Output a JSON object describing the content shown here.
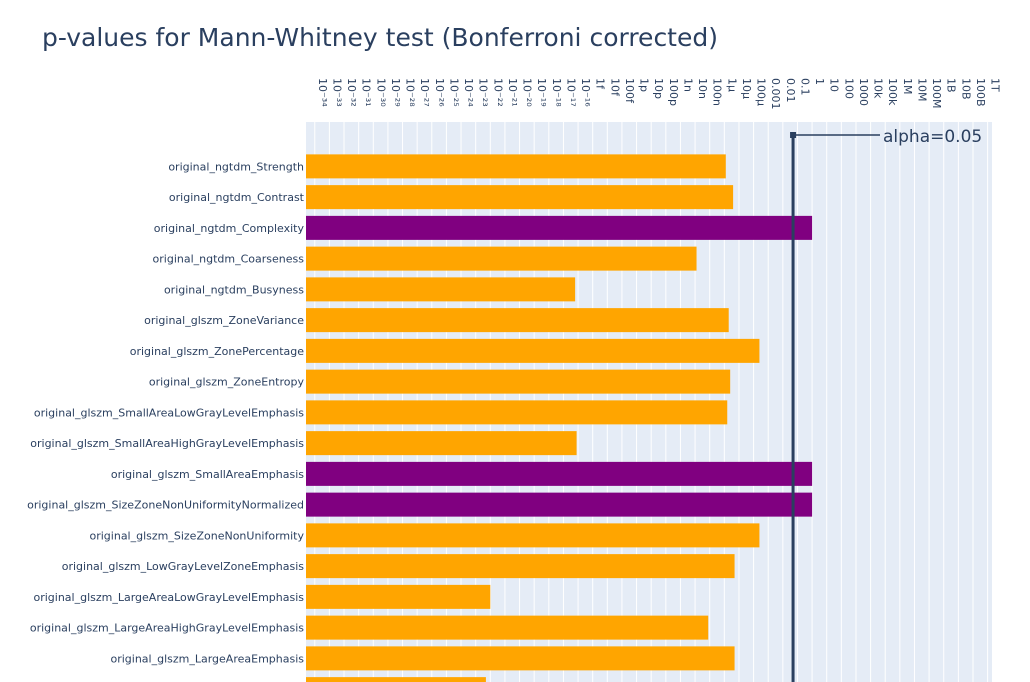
{
  "chart_data": {
    "type": "bar",
    "orientation": "horizontal",
    "title": "p-values for Mann-Whitney test (Bonferroni corrected)",
    "xaxis": {
      "scale": "log",
      "side": "top",
      "range_exponent": [
        -34.6,
        12.3
      ],
      "grid": true
    },
    "x_ticks": [
      {
        "exp": -34,
        "label": "10⁻³⁴"
      },
      {
        "exp": -33,
        "label": "10⁻³³"
      },
      {
        "exp": -32,
        "label": "10⁻³²"
      },
      {
        "exp": -31,
        "label": "10⁻³¹"
      },
      {
        "exp": -30,
        "label": "10⁻³⁰"
      },
      {
        "exp": -29,
        "label": "10⁻²⁹"
      },
      {
        "exp": -28,
        "label": "10⁻²⁸"
      },
      {
        "exp": -27,
        "label": "10⁻²⁷"
      },
      {
        "exp": -26,
        "label": "10⁻²⁶"
      },
      {
        "exp": -25,
        "label": "10⁻²⁵"
      },
      {
        "exp": -24,
        "label": "10⁻²⁴"
      },
      {
        "exp": -23,
        "label": "10⁻²³"
      },
      {
        "exp": -22,
        "label": "10⁻²²"
      },
      {
        "exp": -21,
        "label": "10⁻²¹"
      },
      {
        "exp": -20,
        "label": "10⁻²⁰"
      },
      {
        "exp": -19,
        "label": "10⁻¹⁹"
      },
      {
        "exp": -18,
        "label": "10⁻¹⁸"
      },
      {
        "exp": -17,
        "label": "10⁻¹⁷"
      },
      {
        "exp": -16,
        "label": "10⁻¹⁶"
      },
      {
        "exp": -15,
        "label": "1f"
      },
      {
        "exp": -14,
        "label": "10f"
      },
      {
        "exp": -13,
        "label": "100f"
      },
      {
        "exp": -12,
        "label": "1p"
      },
      {
        "exp": -11,
        "label": "10p"
      },
      {
        "exp": -10,
        "label": "100p"
      },
      {
        "exp": -9,
        "label": "1n"
      },
      {
        "exp": -8,
        "label": "10n"
      },
      {
        "exp": -7,
        "label": "100n"
      },
      {
        "exp": -6,
        "label": "1µ"
      },
      {
        "exp": -5,
        "label": "10µ"
      },
      {
        "exp": -4,
        "label": "100µ"
      },
      {
        "exp": -3,
        "label": "0.001"
      },
      {
        "exp": -2,
        "label": "0.01"
      },
      {
        "exp": -1,
        "label": "0.1"
      },
      {
        "exp": 0,
        "label": "1"
      },
      {
        "exp": 1,
        "label": "10"
      },
      {
        "exp": 2,
        "label": "100"
      },
      {
        "exp": 3,
        "label": "1000"
      },
      {
        "exp": 4,
        "label": "10k"
      },
      {
        "exp": 5,
        "label": "100k"
      },
      {
        "exp": 6,
        "label": "1M"
      },
      {
        "exp": 7,
        "label": "10M"
      },
      {
        "exp": 8,
        "label": "100M"
      },
      {
        "exp": 9,
        "label": "1B"
      },
      {
        "exp": 10,
        "label": "10B"
      },
      {
        "exp": 11,
        "label": "100B"
      },
      {
        "exp": 12,
        "label": "1T"
      }
    ],
    "categories": [
      "original_ngtdm_Strength",
      "original_ngtdm_Contrast",
      "original_ngtdm_Complexity",
      "original_ngtdm_Coarseness",
      "original_ngtdm_Busyness",
      "original_glszm_ZoneVariance",
      "original_glszm_ZonePercentage",
      "original_glszm_ZoneEntropy",
      "original_glszm_SmallAreaLowGrayLevelEmphasis",
      "original_glszm_SmallAreaHighGrayLevelEmphasis",
      "original_glszm_SmallAreaEmphasis",
      "original_glszm_SizeZoneNonUniformityNormalized",
      "original_glszm_SizeZoneNonUniformity",
      "original_glszm_LowGrayLevelZoneEmphasis",
      "original_glszm_LargeAreaLowGrayLevelEmphasis",
      "original_glszm_LargeAreaHighGrayLevelEmphasis",
      "original_glszm_LargeAreaEmphasis",
      ""
    ],
    "values_log10": [
      -5.9,
      -5.4,
      0.0,
      -7.9,
      -16.2,
      -5.7,
      -3.6,
      -5.6,
      -5.8,
      -16.1,
      0.0,
      0.0,
      -3.6,
      -5.3,
      -22.0,
      -7.1,
      -5.3,
      -22.3
    ],
    "colors": [
      "#FFA500",
      "#FFA500",
      "#800080",
      "#FFA500",
      "#FFA500",
      "#FFA500",
      "#FFA500",
      "#FFA500",
      "#FFA500",
      "#FFA500",
      "#800080",
      "#800080",
      "#FFA500",
      "#FFA500",
      "#FFA500",
      "#FFA500",
      "#FFA500",
      "#FFA500"
    ],
    "significant_color": "#FFA500",
    "not_significant_color": "#800080",
    "alpha": 0.05,
    "annotation": "alpha=0.05",
    "plot_bg": "#E5ECF6",
    "line_color": "#2a3f5f"
  }
}
